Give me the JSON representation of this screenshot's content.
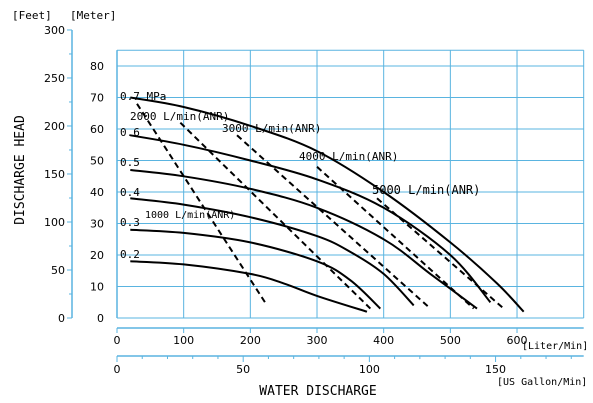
{
  "colors": {
    "grid": "#5ab4e0",
    "axis": "#000000",
    "curve": "#000000",
    "background": "#ffffff"
  },
  "chart_data": {
    "type": "line",
    "title": "",
    "unit_labels": {
      "feet": "[Feet]",
      "meter": "[Meter]",
      "liter_min": "[Liter/Min]",
      "us_gallon_min": "[US Gallon/Min]"
    },
    "ylabel": "DISCHARGE HEAD",
    "xlabel": "WATER DISCHARGE",
    "x_liter_ticks": [
      "0",
      "100",
      "200",
      "300",
      "400",
      "500",
      "600"
    ],
    "x_gallon_ticks": [
      "0",
      "50",
      "100",
      "150"
    ],
    "y_meter_ticks": [
      "0",
      "10",
      "20",
      "30",
      "40",
      "50",
      "60",
      "70",
      "80"
    ],
    "y_feet_ticks": [
      "0",
      "50",
      "100",
      "150",
      "200",
      "250",
      "300"
    ],
    "xlim": [
      0,
      700
    ],
    "ylim": [
      0,
      90
    ],
    "grid": true,
    "pressure_curves": [
      {
        "name": "0.7 MPa",
        "points": [
          [
            20,
            70
          ],
          [
            100,
            67
          ],
          [
            200,
            61
          ],
          [
            300,
            53
          ],
          [
            400,
            40
          ],
          [
            500,
            24
          ],
          [
            570,
            11
          ],
          [
            610,
            2
          ]
        ]
      },
      {
        "name": "0.6",
        "points": [
          [
            20,
            58
          ],
          [
            100,
            55
          ],
          [
            200,
            50
          ],
          [
            300,
            44
          ],
          [
            400,
            35
          ],
          [
            500,
            20
          ],
          [
            560,
            5
          ]
        ]
      },
      {
        "name": "0.5",
        "points": [
          [
            20,
            47
          ],
          [
            100,
            45
          ],
          [
            200,
            41
          ],
          [
            300,
            35
          ],
          [
            400,
            25
          ],
          [
            470,
            14
          ],
          [
            540,
            3
          ]
        ]
      },
      {
        "name": "0.4",
        "points": [
          [
            20,
            38
          ],
          [
            100,
            36
          ],
          [
            200,
            32
          ],
          [
            300,
            26
          ],
          [
            350,
            21
          ],
          [
            400,
            14
          ],
          [
            445,
            4
          ]
        ]
      },
      {
        "name": "0.3",
        "points": [
          [
            20,
            28
          ],
          [
            100,
            27
          ],
          [
            200,
            24
          ],
          [
            300,
            18
          ],
          [
            350,
            12
          ],
          [
            395,
            3
          ]
        ]
      },
      {
        "name": "0.2",
        "points": [
          [
            20,
            18
          ],
          [
            100,
            17
          ],
          [
            200,
            14
          ],
          [
            250,
            11
          ],
          [
            300,
            7
          ],
          [
            375,
            2
          ]
        ]
      }
    ],
    "air_consumption_lines": [
      {
        "name": "1000 L/min(ANR)",
        "points": [
          [
            30,
            68
          ],
          [
            225,
            4
          ]
        ]
      },
      {
        "name": "2000 L/min(ANR)",
        "points": [
          [
            95,
            62
          ],
          [
            380,
            3
          ]
        ]
      },
      {
        "name": "3000 L/min(ANR)",
        "points": [
          [
            180,
            58
          ],
          [
            470,
            3
          ]
        ]
      },
      {
        "name": "4000 L/min(ANR)",
        "points": [
          [
            300,
            48
          ],
          [
            535,
            3
          ]
        ]
      },
      {
        "name": "5000 L/min(ANR)",
        "points": [
          [
            390,
            38
          ],
          [
            580,
            3
          ]
        ]
      }
    ],
    "annotations": [
      {
        "text": "0.7 MPa"
      },
      {
        "text": "0.6"
      },
      {
        "text": "0.5"
      },
      {
        "text": "0.4"
      },
      {
        "text": "0.3"
      },
      {
        "text": "0.2"
      },
      {
        "text": "2000 L/min(ANR)"
      },
      {
        "text": "3000 L/min(ANR)"
      },
      {
        "text": "4000 L/min(ANR)"
      },
      {
        "text": "5000 L/min(ANR)"
      },
      {
        "text": "1000 L/min(ANR)"
      }
    ]
  }
}
